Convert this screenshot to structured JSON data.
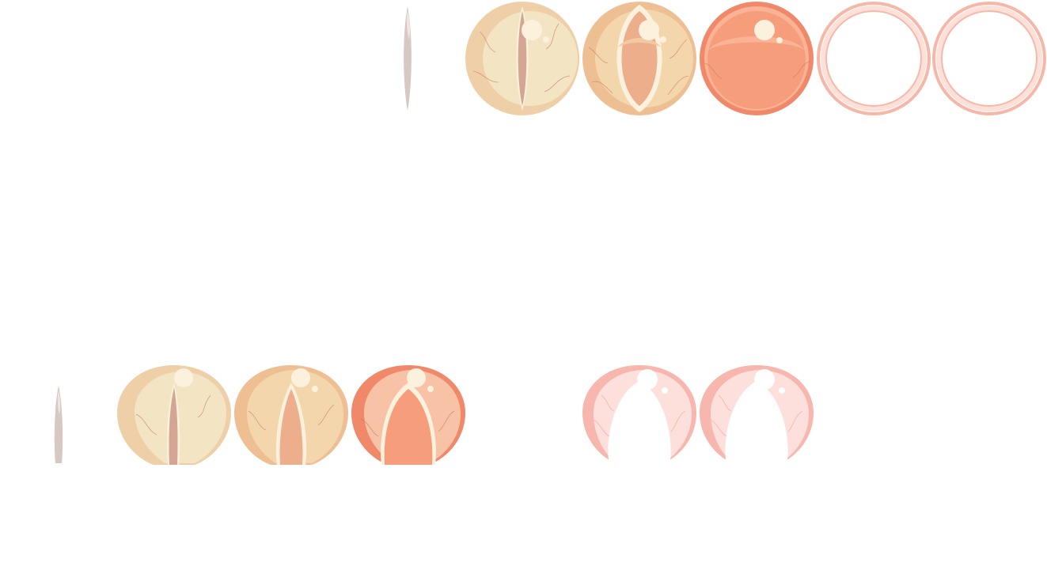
{
  "title": "",
  "palette": {
    "slit": "#d8c8c4",
    "slit_light": "#efe6e2",
    "vein": "#c77a63",
    "highlight": "#fbf1dc",
    "cream_outer": "#efcfa7",
    "cream_inner": "#f3e4c3",
    "cream_opening": "#d5a594",
    "peach_outer": "#efbf94",
    "peach_inner": "#f4d6ad",
    "peach_opening": "#ecae8b",
    "orange_outer": "#f0886a",
    "orange_inner": "#f69d7b",
    "orange_glow": "#fbb395",
    "ring_pink": "#f7b7a8",
    "ring_pink_light": "#fde0d8",
    "pink_outer": "#f7b7ae",
    "pink_inner": "#fde0dc"
  },
  "rows": [
    {
      "id": "row-top",
      "frames": [
        {
          "kind": "slit",
          "icon": "slit-frame-icon"
        },
        {
          "kind": "ball",
          "stage": 1,
          "icon": "eye-cream-frame-icon"
        },
        {
          "kind": "ball",
          "stage": 2,
          "icon": "eye-peach-frame-icon"
        },
        {
          "kind": "ball",
          "stage": 3,
          "icon": "eye-orange-frame-icon"
        },
        {
          "kind": "ring",
          "stage": 4,
          "icon": "ring-frame-icon"
        },
        {
          "kind": "ring",
          "stage": 5,
          "icon": "ring-frame-icon"
        }
      ]
    },
    {
      "id": "row-bottom",
      "frames": [
        {
          "kind": "slit",
          "icon": "slit-frame-icon"
        },
        {
          "kind": "cut",
          "stage": 1,
          "icon": "petal-cream-frame-icon"
        },
        {
          "kind": "cut",
          "stage": 2,
          "icon": "petal-peach-frame-icon"
        },
        {
          "kind": "cut",
          "stage": 3,
          "icon": "petal-orange-frame-icon"
        },
        {
          "kind": "cut",
          "stage": 4,
          "icon": "petal-pink-frame-icon"
        },
        {
          "kind": "cut",
          "stage": 5,
          "icon": "petal-pink-frame-icon"
        }
      ]
    }
  ]
}
